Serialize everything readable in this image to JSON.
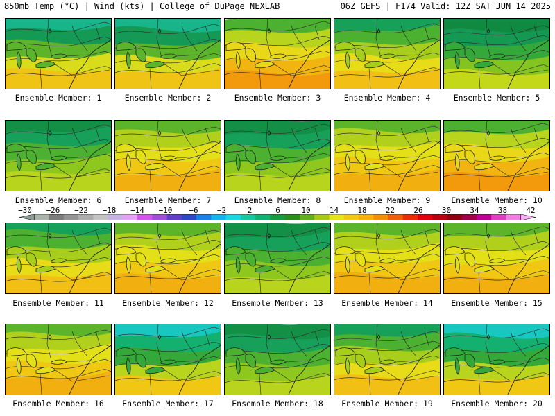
{
  "header": {
    "title_left": "850mb Temp (°C) | Wind (kts) | College of DuPage NEXLAB",
    "title_right": "06Z GEFS | F174 Valid: 12Z SAT JUN 14 2025"
  },
  "colorbar": {
    "labels": [
      "−30",
      "−26",
      "−22",
      "−18",
      "−14",
      "−10",
      "−6",
      "−2",
      "2",
      "6",
      "10",
      "14",
      "18",
      "22",
      "26",
      "30",
      "34",
      "38",
      "42"
    ],
    "colors": [
      "#8c9c94",
      "#a8b4ac",
      "#7c7c7c",
      "#949494",
      "#acacac",
      "#c4c4c4",
      "#c8b4e4",
      "#e4a4f4",
      "#d058e8",
      "#a050d8",
      "#6040c8",
      "#3048c8",
      "#1880e8",
      "#14b4f0",
      "#18d8e0",
      "#18c8a0",
      "#10b070",
      "#189a40",
      "#2c8c20",
      "#64b01c",
      "#a8c818",
      "#e4e418",
      "#f0cc14",
      "#f4b40c",
      "#f49008",
      "#f06008",
      "#ec2c08",
      "#e00010",
      "#b80010",
      "#900010",
      "#a00048",
      "#c00090",
      "#e040c0",
      "#f080e0",
      "#f4b0f0"
    ]
  },
  "map_features": [
    "great-lakes",
    "coastline",
    "state-borders",
    "temperature-contours",
    "station-marker"
  ],
  "panel_caption_prefix": "Ensemble Member: ",
  "panels": [
    {
      "label": "Ensemble Member: 1",
      "shade": "mixed-green-north"
    },
    {
      "label": "Ensemble Member: 2",
      "shade": "mixed-green-north"
    },
    {
      "label": "Ensemble Member: 3",
      "shade": "warm-south"
    },
    {
      "label": "Ensemble Member: 4",
      "shade": "mixed"
    },
    {
      "label": "Ensemble Member: 5",
      "shade": "green-north"
    },
    {
      "label": "Ensemble Member: 6",
      "shade": "green"
    },
    {
      "label": "Ensemble Member: 7",
      "shade": "warm"
    },
    {
      "label": "Ensemble Member: 8",
      "shade": "green"
    },
    {
      "label": "Ensemble Member: 9",
      "shade": "warm"
    },
    {
      "label": "Ensemble Member: 10",
      "shade": "warm-south"
    },
    {
      "label": "Ensemble Member: 11",
      "shade": "mixed"
    },
    {
      "label": "Ensemble Member: 12",
      "shade": "warm"
    },
    {
      "label": "Ensemble Member: 13",
      "shade": "green"
    },
    {
      "label": "Ensemble Member: 14",
      "shade": "warm"
    },
    {
      "label": "Ensemble Member: 15",
      "shade": "warm"
    },
    {
      "label": "Ensemble Member: 16",
      "shade": "warm"
    },
    {
      "label": "Ensemble Member: 17",
      "shade": "cold-north"
    },
    {
      "label": "Ensemble Member: 18",
      "shade": "green"
    },
    {
      "label": "Ensemble Member: 19",
      "shade": "mixed"
    },
    {
      "label": "Ensemble Member: 20",
      "shade": "cold-north"
    }
  ]
}
